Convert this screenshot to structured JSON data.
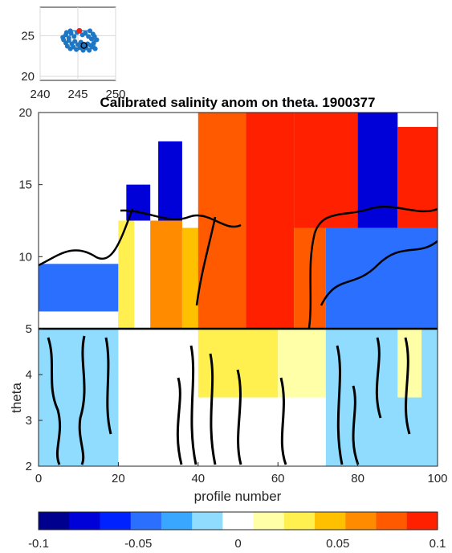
{
  "chart_data": [
    {
      "type": "scatter",
      "role": "inset-location-map",
      "x_ticks": [
        "240",
        "245",
        "250"
      ],
      "y_ticks": [
        "25",
        "20"
      ],
      "xlim": [
        240,
        250
      ],
      "ylim": [
        19.5,
        28.5
      ],
      "grid": true,
      "track_color": "#1f77c4",
      "start_marker_color": "#e8261b",
      "end_marker_color": "#000000",
      "start_point": [
        245.2,
        25.6
      ],
      "end_point": [
        245.8,
        23.8
      ],
      "track": [
        [
          243.0,
          24.8
        ],
        [
          243.4,
          25.1
        ],
        [
          243.8,
          24.7
        ],
        [
          244.1,
          25.3
        ],
        [
          244.5,
          24.9
        ],
        [
          244.9,
          25.4
        ],
        [
          245.2,
          25.6
        ],
        [
          245.6,
          25.1
        ],
        [
          246.0,
          25.3
        ],
        [
          246.4,
          24.9
        ],
        [
          246.8,
          24.6
        ],
        [
          247.2,
          24.9
        ],
        [
          247.5,
          24.5
        ],
        [
          247.1,
          24.1
        ],
        [
          246.7,
          23.8
        ],
        [
          246.3,
          24.0
        ],
        [
          245.8,
          23.8
        ],
        [
          245.4,
          24.2
        ],
        [
          245.0,
          23.9
        ],
        [
          244.6,
          24.3
        ],
        [
          244.2,
          24.0
        ],
        [
          243.8,
          24.4
        ],
        [
          243.4,
          24.1
        ],
        [
          243.1,
          24.5
        ],
        [
          243.6,
          23.7
        ],
        [
          244.0,
          23.4
        ],
        [
          244.4,
          23.6
        ],
        [
          244.8,
          23.3
        ],
        [
          245.3,
          23.5
        ],
        [
          245.7,
          23.2
        ],
        [
          246.1,
          23.5
        ],
        [
          246.5,
          23.2
        ],
        [
          246.9,
          23.6
        ],
        [
          247.3,
          23.4
        ],
        [
          247.0,
          25.2
        ],
        [
          246.6,
          25.6
        ],
        [
          244.0,
          25.6
        ],
        [
          243.5,
          25.4
        ]
      ]
    },
    {
      "type": "heatmap",
      "title": "Calibrated salinity anom on theta. 1900377",
      "xlabel": "profile number",
      "ylabel": "theta",
      "xlim": [
        0,
        100
      ],
      "x_ticks": [
        "0",
        "20",
        "40",
        "60",
        "80",
        "100"
      ],
      "upper_panel": {
        "ylim": [
          5,
          20
        ],
        "y_ticks": [
          "20",
          "15",
          "10",
          "5"
        ]
      },
      "lower_panel": {
        "ylim": [
          2,
          5
        ],
        "y_ticks": [
          "4",
          "3",
          "2"
        ]
      },
      "colorbar": {
        "range": [
          -0.1,
          0.1
        ],
        "tick_labels": [
          "-0.1",
          "-0.05",
          "0",
          "0.05",
          "0.1"
        ],
        "colors": [
          "#00008f",
          "#0000d9",
          "#0022ff",
          "#2b6fff",
          "#39a6ff",
          "#8fdcff",
          "#ffffff",
          "#ffffa8",
          "#fff050",
          "#ffc000",
          "#ff8c00",
          "#ff5a00",
          "#ff2000"
        ]
      },
      "upper_regions": [
        {
          "x0": 0,
          "x1": 20,
          "y0": 5,
          "y1": 9.5,
          "value": -0.05
        },
        {
          "x0": 0,
          "x1": 20,
          "y0": 5,
          "y1": 6.2,
          "value": 0.0
        },
        {
          "x0": 20,
          "x1": 24,
          "y0": 5,
          "y1": 12.5,
          "value": 0.03
        },
        {
          "x0": 22,
          "x1": 28,
          "y0": 12.5,
          "y1": 15,
          "value": -0.08
        },
        {
          "x0": 24,
          "x1": 28,
          "y0": 5,
          "y1": 10,
          "value": 0.0
        },
        {
          "x0": 28,
          "x1": 36,
          "y0": 5,
          "y1": 12.5,
          "value": 0.06
        },
        {
          "x0": 30,
          "x1": 36,
          "y0": 12.5,
          "y1": 18,
          "value": -0.08
        },
        {
          "x0": 36,
          "x1": 42,
          "y0": 5,
          "y1": 12,
          "value": 0.05
        },
        {
          "x0": 40,
          "x1": 52,
          "y0": 5,
          "y1": 20,
          "value": 0.08
        },
        {
          "x0": 52,
          "x1": 64,
          "y0": 5,
          "y1": 20,
          "value": 0.1
        },
        {
          "x0": 64,
          "x1": 72,
          "y0": 5,
          "y1": 12,
          "value": 0.07
        },
        {
          "x0": 64,
          "x1": 80,
          "y0": 12,
          "y1": 20,
          "value": 0.1
        },
        {
          "x0": 72,
          "x1": 100,
          "y0": 5,
          "y1": 12,
          "value": -0.05
        },
        {
          "x0": 80,
          "x1": 90,
          "y0": 12,
          "y1": 20,
          "value": -0.08
        },
        {
          "x0": 90,
          "x1": 100,
          "y0": 12,
          "y1": 19,
          "value": 0.1
        }
      ],
      "lower_regions": [
        {
          "x0": 0,
          "x1": 20,
          "y0": 2,
          "y1": 5,
          "value": -0.02
        },
        {
          "x0": 40,
          "x1": 60,
          "y0": 3.5,
          "y1": 5,
          "value": 0.03
        },
        {
          "x0": 60,
          "x1": 72,
          "y0": 3.5,
          "y1": 5,
          "value": 0.02
        },
        {
          "x0": 72,
          "x1": 100,
          "y0": 2,
          "y1": 5,
          "value": -0.02
        },
        {
          "x0": 90,
          "x1": 96,
          "y0": 3.5,
          "y1": 5,
          "value": 0.02
        }
      ]
    }
  ]
}
